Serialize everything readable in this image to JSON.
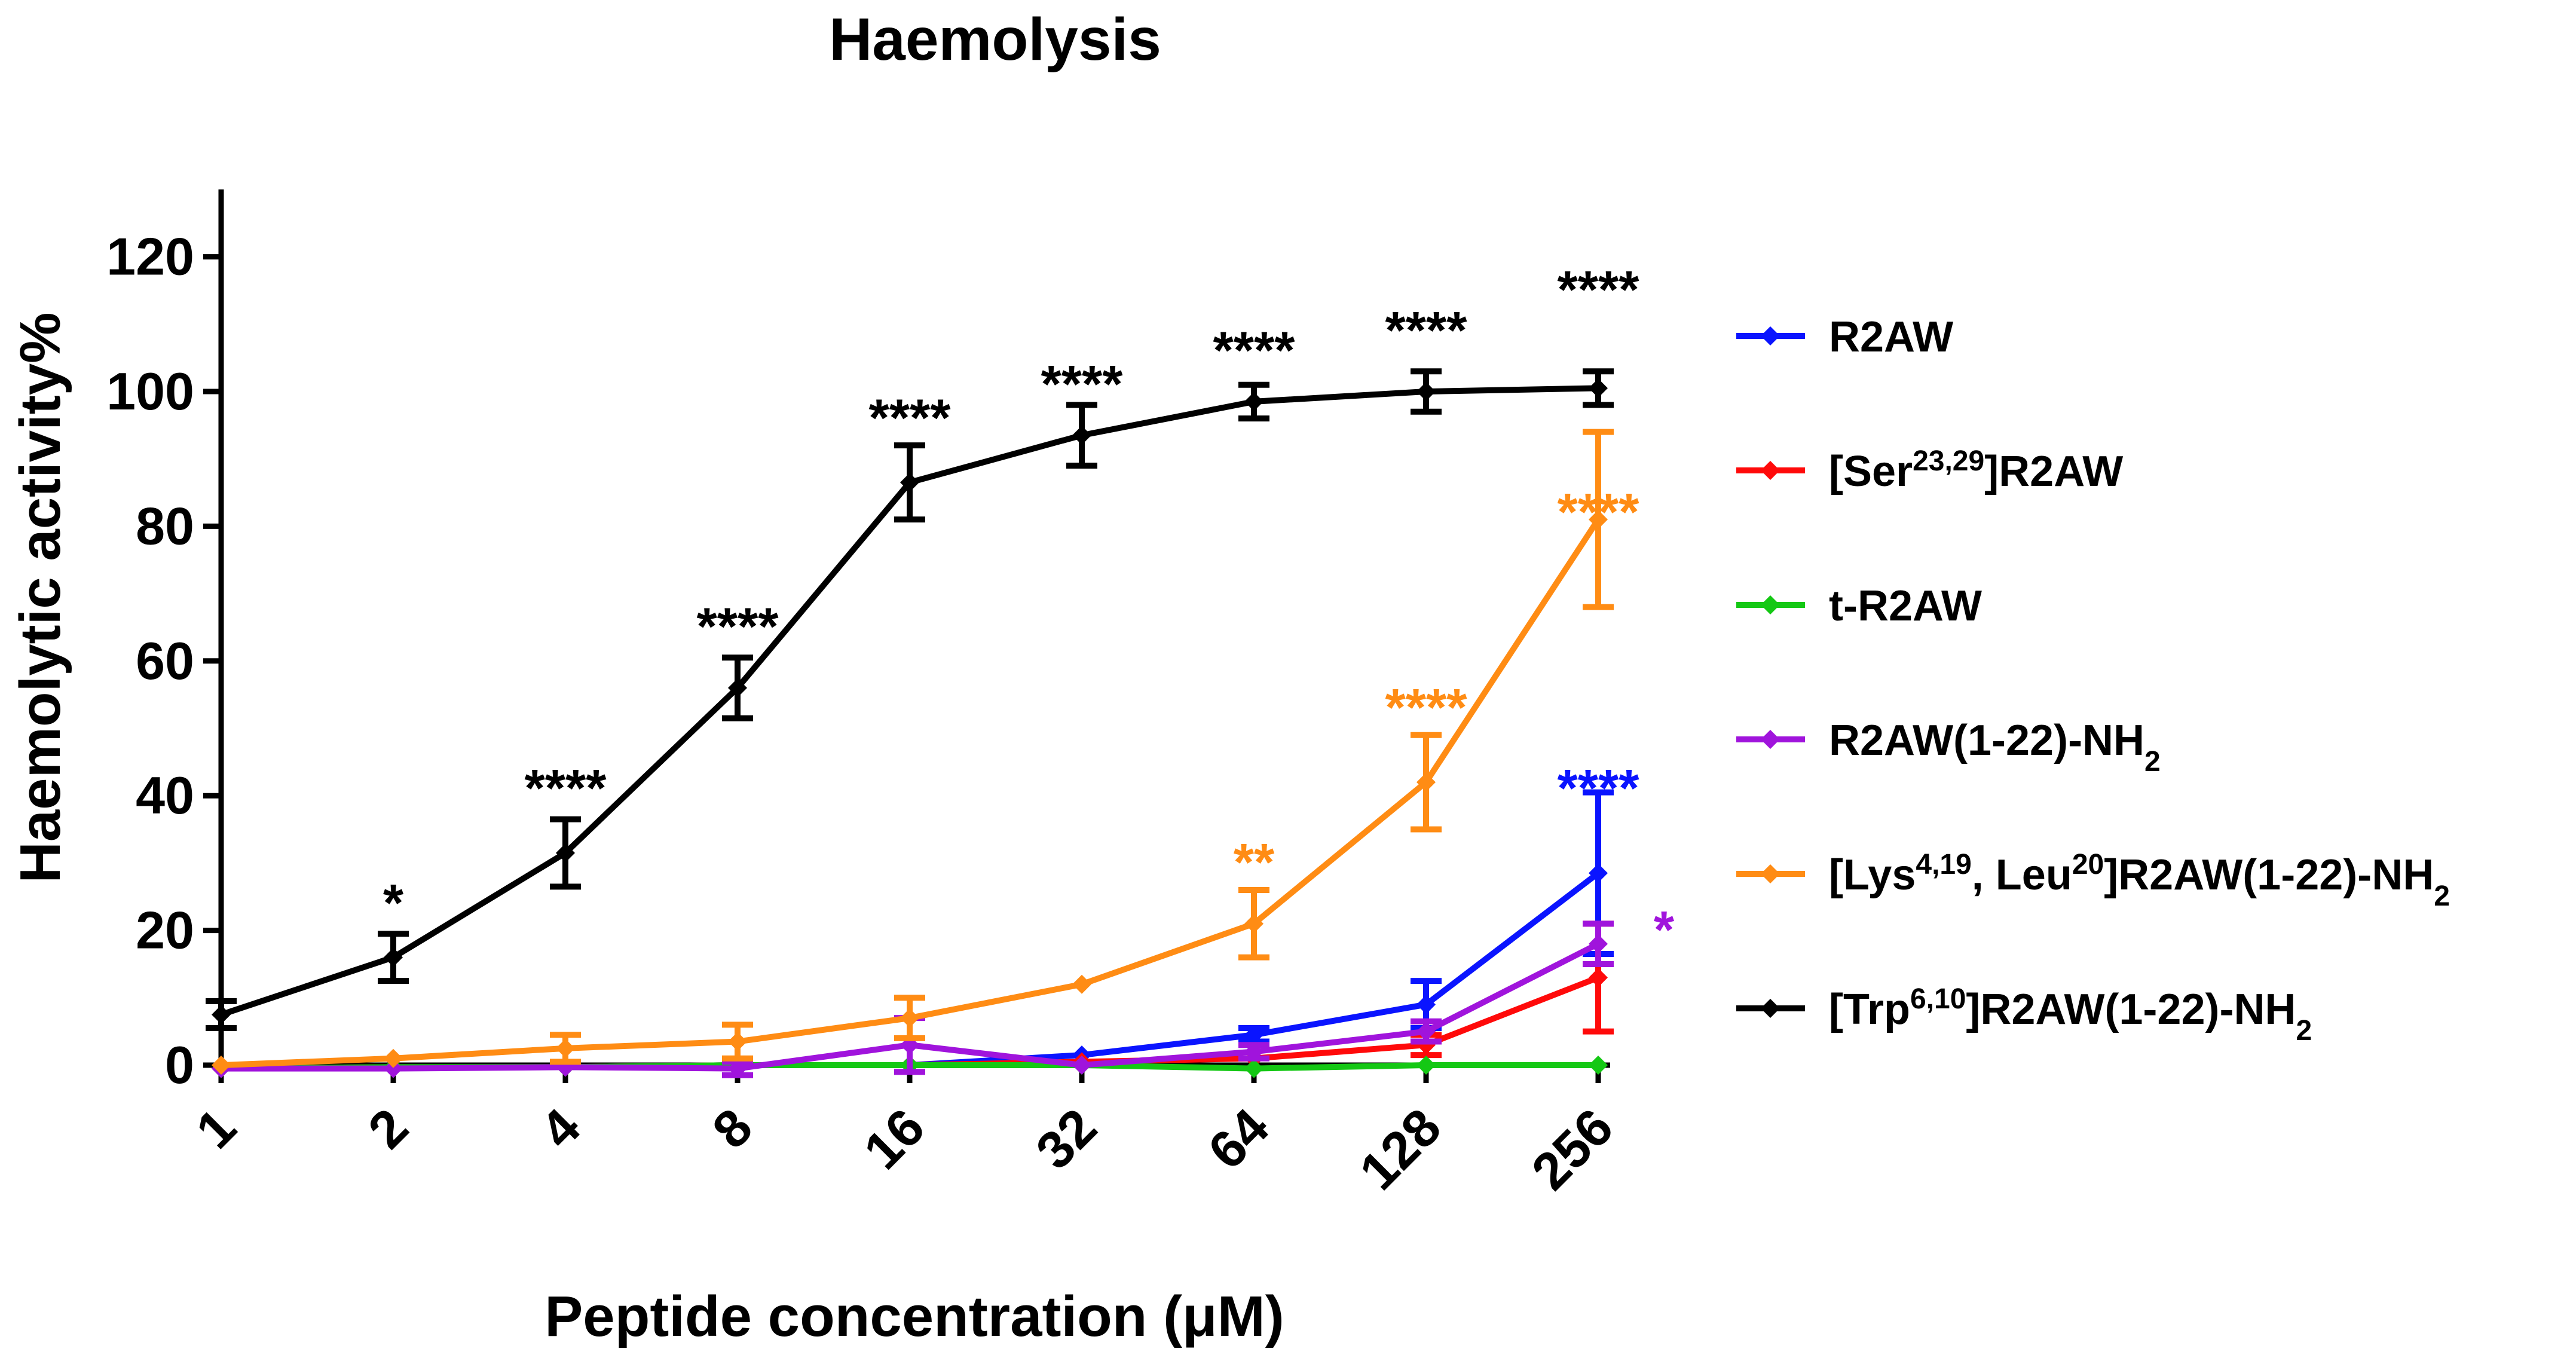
{
  "chart_data": {
    "type": "line",
    "title": "Haemolysis",
    "xlabel": "Peptide concentration (μM)",
    "ylabel": "Haemolytic activity%",
    "x_scale": "log2",
    "categories": [
      "1",
      "2",
      "4",
      "8",
      "16",
      "32",
      "64",
      "128",
      "256"
    ],
    "x": [
      1,
      2,
      4,
      8,
      16,
      32,
      64,
      128,
      256
    ],
    "ylim": [
      -5,
      130
    ],
    "yticks": [
      0,
      20,
      40,
      60,
      80,
      100,
      120
    ],
    "series": [
      {
        "name": "R2AW",
        "name_base": "R2AW",
        "name_parts": [
          {
            "t": "R2AW"
          }
        ],
        "color": "#0a14ff",
        "values": [
          -0.5,
          -0.3,
          -0.3,
          0,
          0,
          1.5,
          4.5,
          9,
          28.5
        ],
        "errors": [
          0.5,
          0.5,
          0.5,
          0.5,
          0.5,
          0.5,
          1,
          3.5,
          12
        ]
      },
      {
        "name": "[Ser23,29]R2AW",
        "name_parts": [
          {
            "t": "[Ser"
          },
          {
            "t": "23,29",
            "sup": true
          },
          {
            "t": "]R2AW"
          }
        ],
        "color": "#ff0a0a",
        "values": [
          -0.5,
          -0.3,
          -0.3,
          0,
          0,
          0.5,
          1,
          3,
          13
        ],
        "errors": [
          0.5,
          0.5,
          0.5,
          0.5,
          0.5,
          0.5,
          0.5,
          1.5,
          8
        ]
      },
      {
        "name": "t-R2AW",
        "name_parts": [
          {
            "t": "t-R2AW"
          }
        ],
        "color": "#14c814",
        "values": [
          -0.5,
          -0.3,
          -0.3,
          0,
          0,
          0,
          -0.5,
          0,
          0
        ],
        "errors": [
          0.3,
          0.3,
          0.3,
          0.3,
          0.3,
          0.3,
          0.3,
          0.3,
          0.3
        ]
      },
      {
        "name": "R2AW(1-22)-NH2",
        "name_parts": [
          {
            "t": "R2AW(1-22)-NH"
          },
          {
            "t": "2",
            "sub": true
          }
        ],
        "color": "#a014dc",
        "values": [
          -0.5,
          -0.5,
          -0.3,
          -0.5,
          3,
          0,
          2,
          5,
          18
        ],
        "errors": [
          0.5,
          0.5,
          0.5,
          1,
          4,
          0.5,
          1,
          1.5,
          3
        ]
      },
      {
        "name": "[Lys4,19, Leu20]R2AW(1-22)-NH2",
        "name_parts": [
          {
            "t": "[Lys"
          },
          {
            "t": "4,19",
            "sup": true
          },
          {
            "t": ", Leu"
          },
          {
            "t": "20",
            "sup": true
          },
          {
            "t": "]R2AW(1-22)-NH"
          },
          {
            "t": "2",
            "sub": true
          }
        ],
        "color": "#ff8c14",
        "values": [
          0,
          1,
          2.5,
          3.5,
          7,
          12,
          21,
          42,
          81
        ],
        "errors": [
          0.5,
          0.5,
          2,
          2.5,
          3,
          0.5,
          5,
          7,
          13
        ]
      },
      {
        "name": "[Trp6,10]R2AW(1-22)-NH2",
        "name_parts": [
          {
            "t": "[Trp"
          },
          {
            "t": "6,10",
            "sup": true
          },
          {
            "t": "]R2AW(1-22)-NH"
          },
          {
            "t": "2",
            "sub": true
          }
        ],
        "color": "#000000",
        "values": [
          7.5,
          16,
          31.5,
          56,
          86.5,
          93.5,
          98.5,
          100,
          100.5
        ],
        "errors": [
          2,
          3.5,
          5,
          4.5,
          5.5,
          4.5,
          2.5,
          3,
          2.5
        ]
      }
    ],
    "annotations": [
      {
        "text": "*",
        "x": 2,
        "y": 25,
        "color": "#000000"
      },
      {
        "text": "****",
        "x": 4,
        "y": 42,
        "color": "#000000"
      },
      {
        "text": "****",
        "x": 8,
        "y": 66,
        "color": "#000000"
      },
      {
        "text": "****",
        "x": 16,
        "y": 97,
        "color": "#000000"
      },
      {
        "text": "****",
        "x": 32,
        "y": 102,
        "color": "#000000"
      },
      {
        "text": "****",
        "x": 64,
        "y": 107,
        "color": "#000000"
      },
      {
        "text": "****",
        "x": 128,
        "y": 110,
        "color": "#000000"
      },
      {
        "text": "****",
        "x": 256,
        "y": 116,
        "color": "#000000"
      },
      {
        "text": "****",
        "x": 256,
        "y": 83,
        "color": "#ff8c14"
      },
      {
        "text": "****",
        "x": 128,
        "y": 54,
        "color": "#ff8c14"
      },
      {
        "text": "**",
        "x": 64,
        "y": 31,
        "color": "#ff8c14"
      },
      {
        "text": "****",
        "x": 256,
        "y": 42,
        "color": "#0a14ff"
      },
      {
        "text": "*",
        "x": 256,
        "y": 21,
        "color": "#a014dc",
        "offset": "right"
      }
    ],
    "legend_position": "right"
  }
}
